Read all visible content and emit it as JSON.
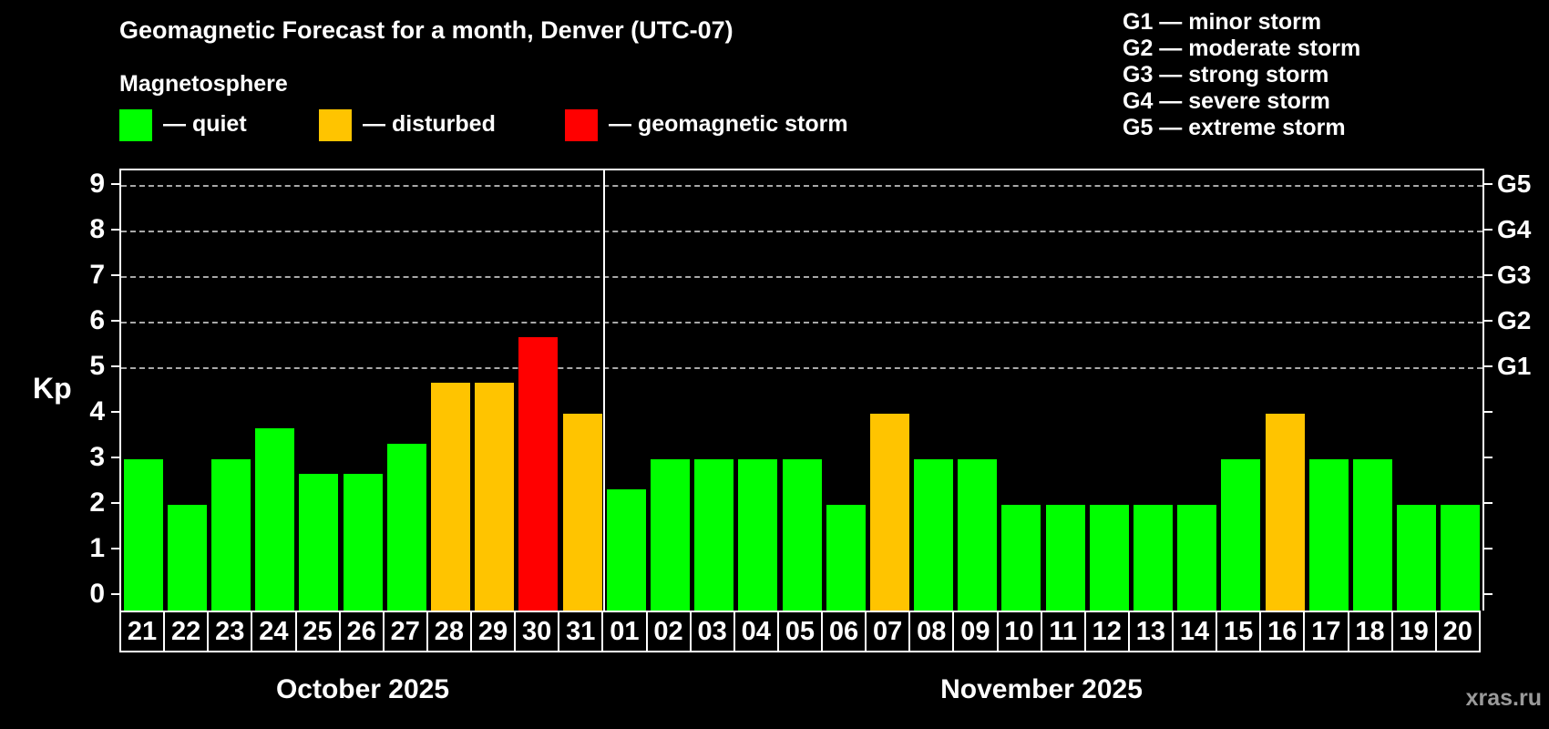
{
  "header": {
    "title": "Geomagnetic Forecast for a month, Denver (UTC-07)",
    "subtitle": "Magnetosphere",
    "legend": [
      {
        "key": "quiet",
        "label": "— quiet",
        "color": "#00ff00"
      },
      {
        "key": "disturbed",
        "label": "— disturbed",
        "color": "#ffc400"
      },
      {
        "key": "storm",
        "label": "— geomagnetic storm",
        "color": "#ff0000"
      }
    ],
    "g_scale_legend": [
      "G1 — minor storm",
      "G2 — moderate storm",
      "G3 — strong storm",
      "G4 — severe storm",
      "G5 — extreme storm"
    ]
  },
  "chart_data": {
    "type": "bar",
    "ylabel": "Kp",
    "ylim": [
      -0.33,
      9.33
    ],
    "yticks": [
      0,
      1,
      2,
      3,
      4,
      5,
      6,
      7,
      8,
      9
    ],
    "grid": "horizontal dashed lines at G storm levels only",
    "legend_position": "top",
    "colors": {
      "quiet": "#00ff00",
      "disturbed": "#ffc400",
      "storm": "#ff0000"
    },
    "g_levels": [
      {
        "kp": 5,
        "label": "G1"
      },
      {
        "kp": 6,
        "label": "G2"
      },
      {
        "kp": 7,
        "label": "G3"
      },
      {
        "kp": 8,
        "label": "G4"
      },
      {
        "kp": 9,
        "label": "G5"
      }
    ],
    "months": [
      {
        "label": "October 2025",
        "days": [
          {
            "day": "21",
            "kp": 3.0,
            "status": "quiet"
          },
          {
            "day": "22",
            "kp": 2.0,
            "status": "quiet"
          },
          {
            "day": "23",
            "kp": 3.0,
            "status": "quiet"
          },
          {
            "day": "24",
            "kp": 3.67,
            "status": "quiet"
          },
          {
            "day": "25",
            "kp": 2.67,
            "status": "quiet"
          },
          {
            "day": "26",
            "kp": 2.67,
            "status": "quiet"
          },
          {
            "day": "27",
            "kp": 3.33,
            "status": "quiet"
          },
          {
            "day": "28",
            "kp": 4.67,
            "status": "disturbed"
          },
          {
            "day": "29",
            "kp": 4.67,
            "status": "disturbed"
          },
          {
            "day": "30",
            "kp": 5.67,
            "status": "storm"
          },
          {
            "day": "31",
            "kp": 4.0,
            "status": "disturbed"
          }
        ]
      },
      {
        "label": "November 2025",
        "days": [
          {
            "day": "01",
            "kp": 2.33,
            "status": "quiet"
          },
          {
            "day": "02",
            "kp": 3.0,
            "status": "quiet"
          },
          {
            "day": "03",
            "kp": 3.0,
            "status": "quiet"
          },
          {
            "day": "04",
            "kp": 3.0,
            "status": "quiet"
          },
          {
            "day": "05",
            "kp": 3.0,
            "status": "quiet"
          },
          {
            "day": "06",
            "kp": 2.0,
            "status": "quiet"
          },
          {
            "day": "07",
            "kp": 4.0,
            "status": "disturbed"
          },
          {
            "day": "08",
            "kp": 3.0,
            "status": "quiet"
          },
          {
            "day": "09",
            "kp": 3.0,
            "status": "quiet"
          },
          {
            "day": "10",
            "kp": 2.0,
            "status": "quiet"
          },
          {
            "day": "11",
            "kp": 2.0,
            "status": "quiet"
          },
          {
            "day": "12",
            "kp": 2.0,
            "status": "quiet"
          },
          {
            "day": "13",
            "kp": 2.0,
            "status": "quiet"
          },
          {
            "day": "14",
            "kp": 2.0,
            "status": "quiet"
          },
          {
            "day": "15",
            "kp": 3.0,
            "status": "quiet"
          },
          {
            "day": "16",
            "kp": 4.0,
            "status": "disturbed"
          },
          {
            "day": "17",
            "kp": 3.0,
            "status": "quiet"
          },
          {
            "day": "18",
            "kp": 3.0,
            "status": "quiet"
          },
          {
            "day": "19",
            "kp": 2.0,
            "status": "quiet"
          },
          {
            "day": "20",
            "kp": 2.0,
            "status": "quiet"
          }
        ]
      }
    ]
  },
  "watermark": "xras.ru"
}
